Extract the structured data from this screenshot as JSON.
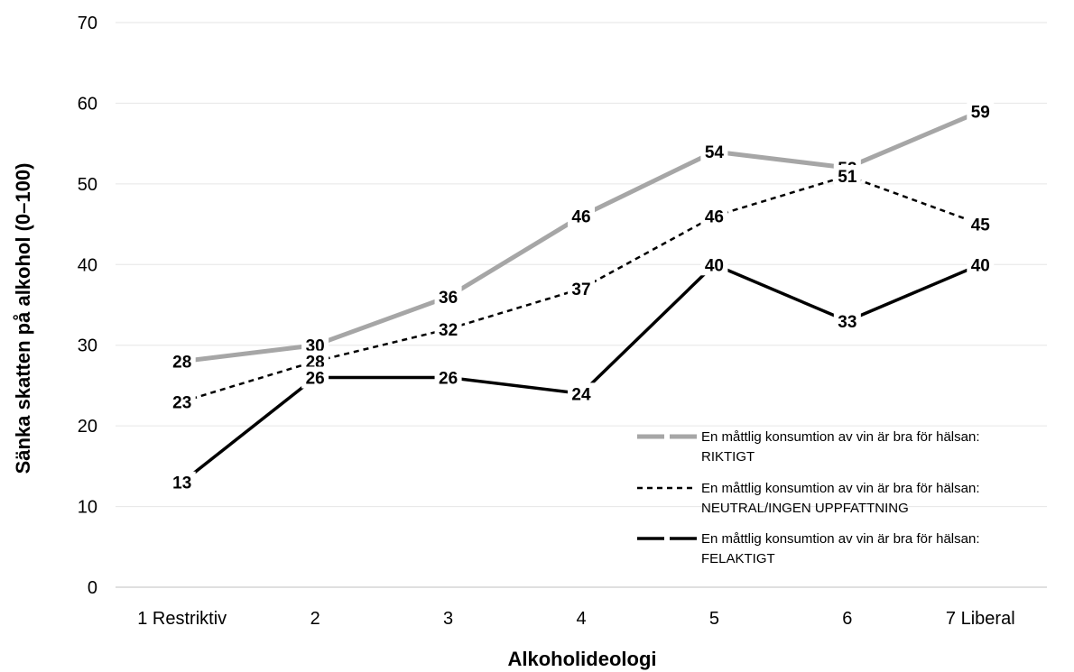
{
  "chart_data": {
    "type": "line",
    "xlabel": "Alkoholideologi",
    "ylabel": "Sänka skatten på alkohol (0–100)",
    "categories": [
      "1 Restriktiv",
      "2",
      "3",
      "4",
      "5",
      "6",
      "7 Liberal"
    ],
    "ylim": [
      0,
      70
    ],
    "yticks": [
      0,
      10,
      20,
      30,
      40,
      50,
      60,
      70
    ],
    "grid": true,
    "legend_position": "right",
    "series": [
      {
        "name_line1": "En måttlig konsumtion av vin är bra för hälsan:",
        "name_line2": "RIKTIGT",
        "values": [
          28,
          30,
          36,
          46,
          54,
          52,
          59
        ],
        "color": "#a6a6a6",
        "style": "solid-thick"
      },
      {
        "name_line1": "En måttlig konsumtion av vin är bra för hälsan:",
        "name_line2": "NEUTRAL/INGEN UPPFATTNING",
        "values": [
          23,
          28,
          32,
          37,
          46,
          51,
          45
        ],
        "color": "#000000",
        "style": "dashed"
      },
      {
        "name_line1": "En måttlig konsumtion av vin är bra för hälsan:",
        "name_line2": "FELAKTIGT",
        "values": [
          13,
          26,
          26,
          24,
          40,
          33,
          40
        ],
        "color": "#000000",
        "style": "solid"
      }
    ]
  }
}
